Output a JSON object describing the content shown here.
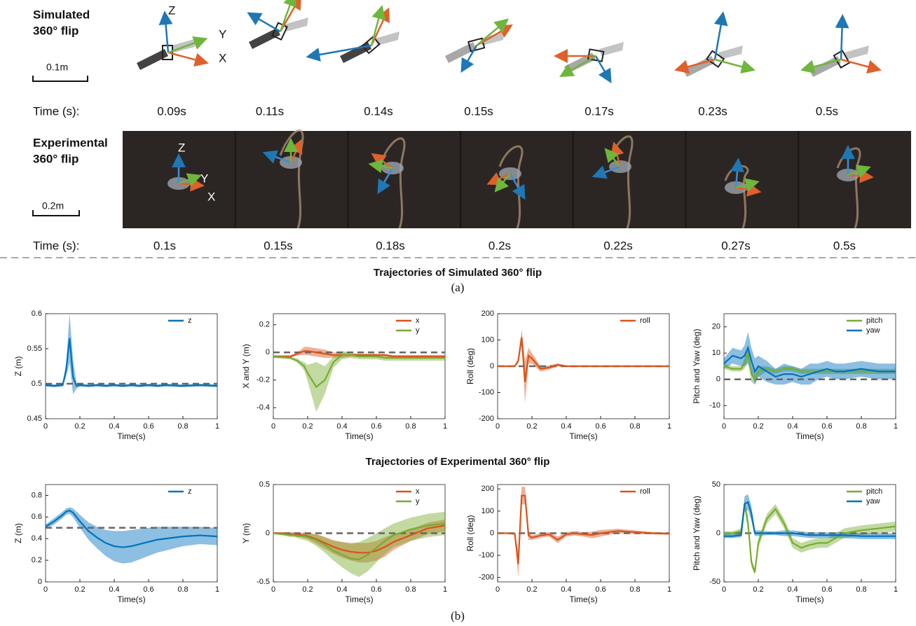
{
  "top": {
    "sim_label": [
      "Simulated",
      "360° flip"
    ],
    "sim_scale": "0.1m",
    "time_label": "Time (s):",
    "sim_times": [
      "0.09s",
      "0.11s",
      "0.14s",
      "0.15s",
      "0.17s",
      "0.23s",
      "0.5s"
    ],
    "sim_axes": [
      "Z",
      "Y",
      "X"
    ],
    "exp_label": [
      "Experimental",
      "360° flip"
    ],
    "exp_scale": "0.2m",
    "exp_times": [
      "0.1s",
      "0.15s",
      "0.18s",
      "0.2s",
      "0.22s",
      "0.27s",
      "0.5s"
    ],
    "exp_axes": [
      "Z",
      "Y",
      "X"
    ]
  },
  "figure": {
    "title_sim": "Trajectories of Simulated 360° flip",
    "label_a": "(a)",
    "title_exp": "Trajectories of Experimental 360° flip",
    "label_b": "(b)"
  },
  "chart_data": [
    {
      "type": "line",
      "ylabel": "Z (m)",
      "xlabel": "Time(s)",
      "legend": "upper right",
      "reference": 0.5,
      "x": [
        0,
        0.05,
        0.1,
        0.12,
        0.14,
        0.16,
        0.18,
        0.2,
        0.25,
        0.3,
        0.35,
        0.4,
        0.45,
        0.5,
        0.55,
        0.6,
        0.65,
        0.7,
        0.8,
        0.9,
        1
      ],
      "xlim": [
        0,
        1
      ],
      "xticks": [
        0,
        0.2,
        0.4,
        0.6,
        0.8,
        1
      ],
      "ylim": [
        0.45,
        0.6
      ],
      "yticks": [
        0.45,
        0.5,
        0.55,
        0.6
      ],
      "series": [
        {
          "name": "z",
          "color": "#0072bd",
          "values": [
            0.498,
            0.497,
            0.498,
            0.52,
            0.565,
            0.51,
            0.497,
            0.498,
            0.497,
            0.498,
            0.497,
            0.498,
            0.497,
            0.498,
            0.497,
            0.498,
            0.497,
            0.498,
            0.497,
            0.498,
            0.497
          ],
          "error": [
            0.002,
            0.002,
            0.002,
            0.01,
            0.035,
            0.025,
            0.004,
            0.002,
            0.002,
            0.002,
            0.002,
            0.002,
            0.002,
            0.002,
            0.002,
            0.002,
            0.002,
            0.002,
            0.002,
            0.002,
            0.002
          ]
        }
      ]
    },
    {
      "type": "line",
      "ylabel": "X and Y (m)",
      "xlabel": "Time(s)",
      "legend": "upper right",
      "reference": 0,
      "x": [
        0,
        0.05,
        0.1,
        0.12,
        0.14,
        0.16,
        0.18,
        0.2,
        0.25,
        0.3,
        0.35,
        0.4,
        0.45,
        0.5,
        0.55,
        0.6,
        0.65,
        0.7,
        0.8,
        0.9,
        1
      ],
      "xlim": [
        0,
        1
      ],
      "xticks": [
        0,
        0.2,
        0.4,
        0.6,
        0.8,
        1
      ],
      "ylim": [
        -0.48,
        0.28
      ],
      "yticks": [
        -0.4,
        -0.2,
        0,
        0.2
      ],
      "series": [
        {
          "name": "x",
          "color": "#d95319",
          "values": [
            -0.03,
            -0.03,
            -0.03,
            -0.02,
            -0.01,
            0,
            0.01,
            0.01,
            0,
            -0.01,
            -0.02,
            -0.02,
            -0.02,
            -0.02,
            -0.02,
            -0.02,
            -0.02,
            -0.03,
            -0.03,
            -0.03,
            -0.03
          ],
          "error": [
            0.01,
            0.01,
            0.01,
            0.01,
            0.01,
            0.02,
            0.03,
            0.03,
            0.03,
            0.03,
            0.02,
            0.02,
            0.01,
            0.01,
            0.01,
            0.01,
            0.01,
            0.01,
            0.01,
            0.01,
            0.01
          ]
        },
        {
          "name": "y",
          "color": "#77ac30",
          "values": [
            -0.03,
            -0.035,
            -0.04,
            -0.05,
            -0.06,
            -0.08,
            -0.1,
            -0.15,
            -0.25,
            -0.2,
            -0.07,
            -0.02,
            -0.02,
            -0.03,
            -0.03,
            -0.03,
            -0.04,
            -0.04,
            -0.04,
            -0.04,
            -0.04
          ],
          "error": [
            0.01,
            0.01,
            0.01,
            0.01,
            0.015,
            0.02,
            0.03,
            0.06,
            0.18,
            0.1,
            0.04,
            0.03,
            0.02,
            0.02,
            0.02,
            0.02,
            0.02,
            0.02,
            0.02,
            0.02,
            0.02
          ]
        }
      ]
    },
    {
      "type": "line",
      "ylabel": "Roll (deg)",
      "xlabel": "Time(s)",
      "legend": "upper right",
      "reference": 0,
      "x": [
        0,
        0.05,
        0.1,
        0.12,
        0.14,
        0.16,
        0.18,
        0.2,
        0.25,
        0.3,
        0.35,
        0.4,
        0.45,
        0.5,
        0.55,
        0.6,
        0.65,
        0.7,
        0.8,
        0.9,
        1
      ],
      "xlim": [
        0,
        1
      ],
      "xticks": [
        0,
        0.2,
        0.4,
        0.6,
        0.8,
        1
      ],
      "ylim": [
        -200,
        200
      ],
      "yticks": [
        -200,
        -100,
        0,
        100,
        200
      ],
      "series": [
        {
          "name": "roll",
          "color": "#d95319",
          "values": [
            0,
            0,
            0,
            20,
            110,
            -60,
            40,
            30,
            -10,
            -5,
            5,
            0,
            0,
            0,
            0,
            0,
            0,
            0,
            0,
            0,
            0
          ],
          "error": [
            2,
            2,
            2,
            10,
            30,
            80,
            30,
            20,
            10,
            8,
            6,
            3,
            3,
            2,
            2,
            2,
            2,
            2,
            2,
            2,
            2
          ]
        }
      ]
    },
    {
      "type": "line",
      "ylabel": "Pitch and Yaw (deg)",
      "xlabel": "Time(s)",
      "legend": "upper right",
      "reference": 0,
      "x": [
        0,
        0.05,
        0.1,
        0.12,
        0.14,
        0.16,
        0.18,
        0.2,
        0.25,
        0.3,
        0.35,
        0.4,
        0.45,
        0.5,
        0.55,
        0.6,
        0.65,
        0.7,
        0.8,
        0.9,
        1
      ],
      "xlim": [
        0,
        1
      ],
      "xticks": [
        0,
        0.2,
        0.4,
        0.6,
        0.8,
        1
      ],
      "ylim": [
        -15,
        25
      ],
      "yticks": [
        -10,
        0,
        10,
        20
      ],
      "series": [
        {
          "name": "pitch",
          "color": "#77ac30",
          "values": [
            5,
            4,
            4,
            6,
            10,
            2,
            0,
            3,
            4,
            3,
            4,
            4,
            3,
            3,
            3,
            3,
            3,
            3,
            3,
            3,
            3
          ],
          "error": [
            1,
            1,
            1,
            2,
            3,
            3,
            2,
            2,
            1,
            1,
            1,
            1,
            1,
            1,
            1,
            1,
            1,
            1,
            1,
            1,
            1
          ]
        },
        {
          "name": "yaw",
          "color": "#0072bd",
          "values": [
            6,
            9,
            8,
            9,
            12,
            7,
            3,
            5,
            3,
            1,
            2,
            2,
            1,
            2,
            3,
            4,
            3,
            3,
            4,
            3,
            3
          ],
          "error": [
            2,
            3,
            3,
            4,
            6,
            5,
            5,
            4,
            4,
            3,
            4,
            3,
            3,
            4,
            3,
            3,
            3,
            3,
            3,
            3,
            3
          ]
        }
      ]
    },
    {
      "type": "line",
      "ylabel": "Z (m)",
      "xlabel": "Time(s)",
      "legend": "upper right",
      "reference": 0.5,
      "x": [
        0,
        0.05,
        0.1,
        0.12,
        0.14,
        0.16,
        0.18,
        0.2,
        0.25,
        0.3,
        0.35,
        0.4,
        0.45,
        0.5,
        0.55,
        0.6,
        0.65,
        0.7,
        0.8,
        0.9,
        1
      ],
      "xlim": [
        0,
        1
      ],
      "xticks": [
        0,
        0.2,
        0.4,
        0.6,
        0.8,
        1
      ],
      "ylim": [
        0,
        0.9
      ],
      "yticks": [
        0,
        0.2,
        0.4,
        0.6,
        0.8
      ],
      "series": [
        {
          "name": "z",
          "color": "#0072bd",
          "values": [
            0.51,
            0.56,
            0.62,
            0.65,
            0.66,
            0.64,
            0.6,
            0.56,
            0.47,
            0.41,
            0.36,
            0.33,
            0.32,
            0.33,
            0.35,
            0.37,
            0.39,
            0.4,
            0.42,
            0.43,
            0.42
          ],
          "error": [
            0.02,
            0.03,
            0.03,
            0.03,
            0.03,
            0.04,
            0.05,
            0.06,
            0.08,
            0.1,
            0.12,
            0.14,
            0.15,
            0.15,
            0.14,
            0.13,
            0.12,
            0.11,
            0.09,
            0.08,
            0.08
          ]
        }
      ]
    },
    {
      "type": "line",
      "ylabel": "Y (m)",
      "xlabel": "Time(s)",
      "legend": "upper right",
      "reference": 0,
      "x": [
        0,
        0.05,
        0.1,
        0.12,
        0.14,
        0.16,
        0.18,
        0.2,
        0.25,
        0.3,
        0.35,
        0.4,
        0.45,
        0.5,
        0.55,
        0.6,
        0.65,
        0.7,
        0.8,
        0.9,
        1
      ],
      "xlim": [
        0,
        1
      ],
      "xticks": [
        0,
        0.2,
        0.4,
        0.6,
        0.8,
        1
      ],
      "ylim": [
        -0.5,
        0.5
      ],
      "yticks": [
        -0.5,
        0,
        0.5
      ],
      "series": [
        {
          "name": "x",
          "color": "#d95319",
          "values": [
            0,
            0,
            -0.01,
            -0.01,
            -0.01,
            -0.02,
            -0.02,
            -0.03,
            -0.06,
            -0.1,
            -0.14,
            -0.17,
            -0.19,
            -0.2,
            -0.2,
            -0.18,
            -0.14,
            -0.09,
            -0.02,
            0.05,
            0.08
          ],
          "error": [
            0.01,
            0.01,
            0.02,
            0.02,
            0.02,
            0.02,
            0.03,
            0.03,
            0.05,
            0.06,
            0.07,
            0.08,
            0.09,
            0.1,
            0.1,
            0.1,
            0.1,
            0.08,
            0.06,
            0.06,
            0.06
          ]
        },
        {
          "name": "y",
          "color": "#77ac30",
          "values": [
            0,
            -0.01,
            -0.02,
            -0.02,
            -0.03,
            -0.03,
            -0.03,
            -0.04,
            -0.07,
            -0.12,
            -0.18,
            -0.22,
            -0.26,
            -0.27,
            -0.22,
            -0.15,
            -0.08,
            -0.02,
            0.04,
            0.08,
            0.1
          ],
          "error": [
            0.01,
            0.01,
            0.02,
            0.02,
            0.02,
            0.03,
            0.04,
            0.04,
            0.06,
            0.08,
            0.1,
            0.13,
            0.15,
            0.18,
            0.17,
            0.15,
            0.13,
            0.12,
            0.12,
            0.12,
            0.12
          ]
        }
      ]
    },
    {
      "type": "line",
      "ylabel": "Roll (deg)",
      "xlabel": "Time(s)",
      "legend": "upper right",
      "reference": 0,
      "x": [
        0,
        0.05,
        0.1,
        0.12,
        0.14,
        0.16,
        0.18,
        0.2,
        0.25,
        0.3,
        0.35,
        0.4,
        0.45,
        0.5,
        0.55,
        0.6,
        0.65,
        0.7,
        0.8,
        0.9,
        1
      ],
      "xlim": [
        0,
        1
      ],
      "xticks": [
        0,
        0.2,
        0.4,
        0.6,
        0.8,
        1
      ],
      "ylim": [
        -220,
        220
      ],
      "yticks": [
        -200,
        -100,
        0,
        100,
        200
      ],
      "series": [
        {
          "name": "roll",
          "color": "#d95319",
          "values": [
            0,
            0,
            -2,
            -140,
            170,
            170,
            -10,
            -20,
            -10,
            -5,
            -30,
            -5,
            0,
            -5,
            -8,
            0,
            5,
            10,
            5,
            0,
            -2
          ],
          "error": [
            2,
            3,
            5,
            60,
            40,
            40,
            20,
            10,
            10,
            10,
            15,
            10,
            10,
            10,
            15,
            15,
            12,
            10,
            8,
            5,
            5
          ]
        }
      ]
    },
    {
      "type": "line",
      "ylabel": "Pitch and Yaw (deg)",
      "xlabel": "Time(s)",
      "legend": "upper right",
      "reference": 0,
      "x": [
        0,
        0.05,
        0.1,
        0.12,
        0.14,
        0.16,
        0.18,
        0.2,
        0.25,
        0.3,
        0.35,
        0.4,
        0.45,
        0.5,
        0.55,
        0.6,
        0.65,
        0.7,
        0.8,
        0.9,
        1
      ],
      "xlim": [
        0,
        1
      ],
      "xticks": [
        0,
        0.2,
        0.4,
        0.6,
        0.8,
        1
      ],
      "ylim": [
        -50,
        50
      ],
      "yticks": [
        -50,
        0,
        50
      ],
      "series": [
        {
          "name": "pitch",
          "color": "#77ac30",
          "values": [
            0,
            0,
            2,
            30,
            10,
            -30,
            -40,
            -10,
            15,
            25,
            10,
            -10,
            -15,
            -12,
            -10,
            -10,
            -5,
            0,
            3,
            5,
            7
          ],
          "error": [
            2,
            2,
            3,
            5,
            8,
            5,
            3,
            5,
            5,
            5,
            5,
            5,
            5,
            5,
            5,
            5,
            5,
            5,
            5,
            5,
            5
          ]
        },
        {
          "name": "yaw",
          "color": "#0072bd",
          "values": [
            -3,
            -3,
            -2,
            30,
            32,
            20,
            0,
            0,
            0,
            0,
            0,
            0,
            -1,
            -2,
            -2,
            -2,
            -2,
            -2,
            -3,
            -3,
            -3
          ],
          "error": [
            2,
            2,
            2,
            8,
            8,
            8,
            3,
            3,
            2,
            2,
            3,
            3,
            3,
            3,
            3,
            3,
            3,
            3,
            3,
            3,
            3
          ]
        }
      ]
    }
  ]
}
